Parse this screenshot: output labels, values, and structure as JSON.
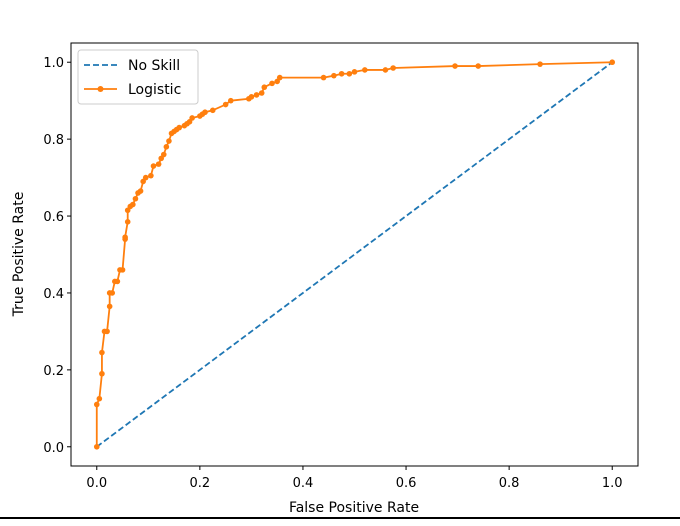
{
  "chart_data": {
    "type": "line",
    "xlabel": "False Positive Rate",
    "ylabel": "True Positive Rate",
    "xlim": [
      -0.05,
      1.05
    ],
    "ylim": [
      -0.05,
      1.05
    ],
    "xticks": [
      "0.0",
      "0.2",
      "0.4",
      "0.6",
      "0.8",
      "1.0"
    ],
    "yticks": [
      "0.0",
      "0.2",
      "0.4",
      "0.6",
      "0.8",
      "1.0"
    ],
    "legend_position": "top-left",
    "grid": false,
    "series": [
      {
        "name": "No Skill",
        "style": "dashed",
        "color": "#1f77b4",
        "marker": "none",
        "x": [
          0.0,
          1.0
        ],
        "y": [
          0.0,
          1.0
        ]
      },
      {
        "name": "Logistic",
        "style": "solid",
        "color": "#ff7f0e",
        "marker": "dot",
        "x": [
          0.0,
          0.0,
          0.005,
          0.01,
          0.01,
          0.015,
          0.02,
          0.025,
          0.025,
          0.03,
          0.035,
          0.04,
          0.045,
          0.05,
          0.055,
          0.055,
          0.06,
          0.06,
          0.065,
          0.07,
          0.075,
          0.08,
          0.085,
          0.09,
          0.095,
          0.105,
          0.11,
          0.12,
          0.125,
          0.13,
          0.135,
          0.14,
          0.145,
          0.15,
          0.155,
          0.16,
          0.17,
          0.175,
          0.18,
          0.185,
          0.2,
          0.205,
          0.21,
          0.225,
          0.25,
          0.26,
          0.295,
          0.3,
          0.31,
          0.32,
          0.325,
          0.34,
          0.35,
          0.355,
          0.44,
          0.46,
          0.475,
          0.49,
          0.5,
          0.52,
          0.56,
          0.575,
          0.695,
          0.74,
          0.86,
          1.0
        ],
        "y": [
          0.0,
          0.11,
          0.125,
          0.19,
          0.245,
          0.3,
          0.3,
          0.365,
          0.4,
          0.4,
          0.43,
          0.43,
          0.46,
          0.46,
          0.54,
          0.545,
          0.585,
          0.615,
          0.625,
          0.63,
          0.645,
          0.66,
          0.665,
          0.69,
          0.7,
          0.705,
          0.73,
          0.735,
          0.75,
          0.76,
          0.78,
          0.795,
          0.815,
          0.82,
          0.825,
          0.83,
          0.835,
          0.84,
          0.845,
          0.855,
          0.86,
          0.865,
          0.87,
          0.875,
          0.89,
          0.9,
          0.905,
          0.91,
          0.915,
          0.92,
          0.935,
          0.945,
          0.95,
          0.96,
          0.96,
          0.965,
          0.97,
          0.97,
          0.975,
          0.98,
          0.98,
          0.985,
          0.99,
          0.99,
          0.995,
          1.0
        ]
      }
    ]
  }
}
